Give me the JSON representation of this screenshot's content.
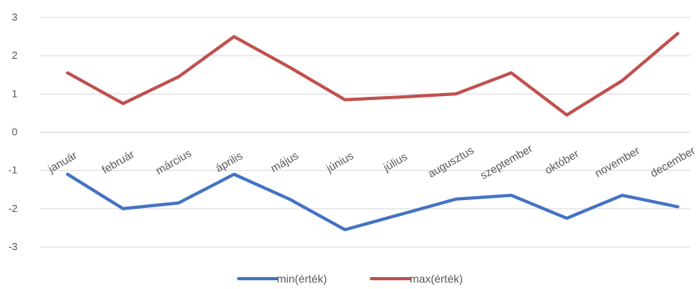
{
  "chart_data": {
    "type": "line",
    "categories": [
      "január",
      "február",
      "március",
      "április",
      "május",
      "június",
      "július",
      "augusztus",
      "szeptember",
      "október",
      "november",
      "december"
    ],
    "series": [
      {
        "name": "min(érték)",
        "color": "#4472c4",
        "values": [
          -1.1,
          -2.0,
          -1.85,
          -1.1,
          -1.75,
          -2.55,
          -2.15,
          -1.75,
          -1.65,
          -2.25,
          -1.65,
          -1.95
        ]
      },
      {
        "name": "max(érték)",
        "color": "#c0504d",
        "values": [
          1.55,
          0.75,
          1.45,
          2.5,
          1.7,
          0.85,
          0.92,
          1.0,
          1.55,
          0.45,
          1.35,
          2.58
        ]
      }
    ],
    "yticks": [
      3,
      2,
      1,
      0,
      -1,
      -2,
      -3
    ],
    "ylim": [
      -3,
      3
    ],
    "grid": true,
    "legend_position": "bottom"
  }
}
